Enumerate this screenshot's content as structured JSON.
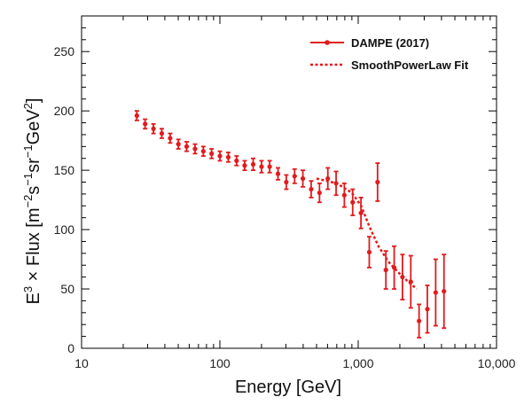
{
  "chart_data": {
    "type": "scatter",
    "xscale": "log",
    "xlim": [
      10,
      10000
    ],
    "ylim": [
      0,
      280
    ],
    "xlabel": "Energy [GeV]",
    "ylabel_parts": [
      "E",
      "3",
      " × Flux  [m",
      "−2",
      "s",
      "−1",
      "sr",
      "−1",
      "GeV",
      "2",
      "]"
    ],
    "xticks": [
      {
        "value": 10,
        "label": "10"
      },
      {
        "value": 100,
        "label": "100"
      },
      {
        "value": 1000,
        "label": "1,000"
      },
      {
        "value": 10000,
        "label": "10,000"
      }
    ],
    "yticks": [
      {
        "value": 0,
        "label": "0"
      },
      {
        "value": 50,
        "label": "50"
      },
      {
        "value": 100,
        "label": "100"
      },
      {
        "value": 150,
        "label": "150"
      },
      {
        "value": 200,
        "label": "200"
      },
      {
        "value": 250,
        "label": "250"
      }
    ],
    "legend_position": "top-right",
    "series": [
      {
        "name": "DAMPE (2017)",
        "style": "points-with-errorbars",
        "color": "#e31a1c",
        "points": [
          {
            "x": 25.1,
            "y": 196,
            "err": 4
          },
          {
            "x": 28.8,
            "y": 189,
            "err": 4
          },
          {
            "x": 33.1,
            "y": 185,
            "err": 4
          },
          {
            "x": 38.0,
            "y": 181,
            "err": 4
          },
          {
            "x": 43.7,
            "y": 177,
            "err": 4
          },
          {
            "x": 50.1,
            "y": 172,
            "err": 4
          },
          {
            "x": 57.5,
            "y": 170,
            "err": 4
          },
          {
            "x": 66.1,
            "y": 168,
            "err": 4
          },
          {
            "x": 75.9,
            "y": 166,
            "err": 4
          },
          {
            "x": 87.1,
            "y": 164,
            "err": 4
          },
          {
            "x": 100,
            "y": 162,
            "err": 4
          },
          {
            "x": 115,
            "y": 161,
            "err": 4
          },
          {
            "x": 132,
            "y": 158,
            "err": 4
          },
          {
            "x": 151,
            "y": 154,
            "err": 4
          },
          {
            "x": 174,
            "y": 155,
            "err": 5
          },
          {
            "x": 200,
            "y": 153,
            "err": 5
          },
          {
            "x": 229,
            "y": 153,
            "err": 5
          },
          {
            "x": 263,
            "y": 147,
            "err": 5
          },
          {
            "x": 302,
            "y": 140,
            "err": 6
          },
          {
            "x": 347,
            "y": 145,
            "err": 6
          },
          {
            "x": 398,
            "y": 143,
            "err": 7
          },
          {
            "x": 457,
            "y": 134,
            "err": 7
          },
          {
            "x": 525,
            "y": 131,
            "err": 8
          },
          {
            "x": 603,
            "y": 143,
            "err": 9
          },
          {
            "x": 692,
            "y": 139,
            "err": 10
          },
          {
            "x": 794,
            "y": 129,
            "err": 10
          },
          {
            "x": 912,
            "y": 123,
            "err": 11
          },
          {
            "x": 1047,
            "y": 114,
            "err": 13
          },
          {
            "x": 1202,
            "y": 81,
            "err": 13
          },
          {
            "x": 1380,
            "y": 140,
            "err": 16
          },
          {
            "x": 1585,
            "y": 66,
            "err": 16
          },
          {
            "x": 1820,
            "y": 68,
            "err": 18
          },
          {
            "x": 2089,
            "y": 60,
            "err": 19
          },
          {
            "x": 2399,
            "y": 56,
            "err": 22
          },
          {
            "x": 2754,
            "y": 23,
            "err": 14
          },
          {
            "x": 3162,
            "y": 33,
            "err": 20
          },
          {
            "x": 3631,
            "y": 47,
            "err": 28
          },
          {
            "x": 4169,
            "y": 48,
            "err": 31
          }
        ]
      },
      {
        "name": "SmoothPowerLaw Fit",
        "style": "dotted-line",
        "color": "#e31a1c",
        "points": [
          {
            "x": 500,
            "y": 143
          },
          {
            "x": 700,
            "y": 139
          },
          {
            "x": 900,
            "y": 131
          },
          {
            "x": 1050,
            "y": 120
          },
          {
            "x": 1200,
            "y": 103
          },
          {
            "x": 1400,
            "y": 86
          },
          {
            "x": 1650,
            "y": 73
          },
          {
            "x": 1950,
            "y": 64
          },
          {
            "x": 2300,
            "y": 56
          },
          {
            "x": 2650,
            "y": 50
          }
        ]
      }
    ]
  }
}
